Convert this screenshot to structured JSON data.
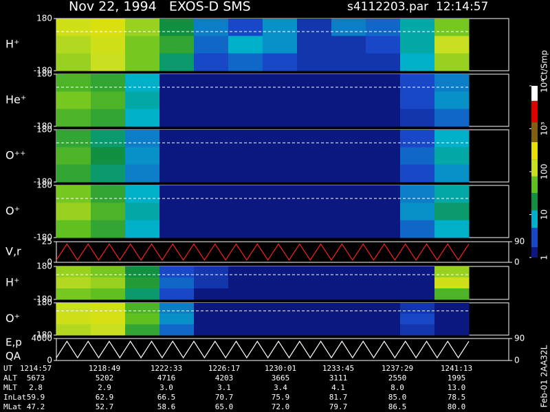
{
  "title": "Nov 22, 1994   EXOS-D SMS",
  "file": "s4112203.par  12:14:57",
  "chart_data": [
    {
      "type": "heatmap",
      "label": "H⁺",
      "ylim": [
        -180,
        180
      ],
      "yticks": [
        180,
        -180
      ],
      "ref_line": 90,
      "z": [
        [
          150,
          200,
          80,
          20,
          5,
          3,
          6,
          2,
          5,
          4,
          10,
          60
        ],
        [
          100,
          150,
          60,
          30,
          4,
          8,
          6,
          2,
          2,
          3,
          10,
          120
        ],
        [
          80,
          120,
          60,
          15,
          3,
          4,
          3,
          2,
          2,
          2,
          8,
          80
        ]
      ]
    },
    {
      "type": "heatmap",
      "label": "He⁺",
      "ylim": [
        -180,
        180
      ],
      "yticks": [
        180,
        -180
      ],
      "ref_line": 90,
      "z": [
        [
          40,
          30,
          8,
          1,
          1,
          1,
          1,
          1,
          1,
          1,
          3,
          5
        ],
        [
          60,
          40,
          10,
          1,
          1,
          1,
          1,
          1,
          1,
          1,
          3,
          6
        ],
        [
          40,
          30,
          8,
          1,
          1,
          1,
          1,
          1,
          1,
          1,
          2,
          4
        ]
      ]
    },
    {
      "type": "heatmap",
      "label": "O⁺⁺",
      "ylim": [
        -180,
        180
      ],
      "yticks": [
        180,
        -180
      ],
      "ref_line": 90,
      "z": [
        [
          30,
          15,
          5,
          1,
          1,
          1,
          1,
          1,
          1,
          1,
          3,
          8
        ],
        [
          40,
          20,
          6,
          1,
          1,
          1,
          1,
          1,
          1,
          1,
          4,
          10
        ],
        [
          30,
          15,
          5,
          1,
          1,
          1,
          1,
          1,
          1,
          1,
          3,
          6
        ]
      ]
    },
    {
      "type": "heatmap",
      "label": "O⁺",
      "ylim": [
        -180,
        180
      ],
      "yticks": [
        180,
        -180
      ],
      "ref_line": 90,
      "z": [
        [
          60,
          30,
          8,
          1,
          1,
          1,
          1,
          1,
          1,
          1,
          5,
          10
        ],
        [
          80,
          40,
          10,
          1,
          1,
          1,
          1,
          1,
          1,
          1,
          6,
          15
        ],
        [
          50,
          30,
          8,
          1,
          1,
          1,
          1,
          1,
          1,
          1,
          4,
          8
        ]
      ]
    },
    {
      "type": "line",
      "label": "V,r",
      "ylim": [
        0,
        25
      ],
      "yticks": [
        25,
        0
      ],
      "y2lim": [
        0,
        90
      ],
      "y2ticks": [
        90,
        0
      ],
      "series": [
        {
          "color": "#ff2020",
          "axis": "y2",
          "values": [
            10,
            80,
            10,
            80,
            10,
            80,
            10,
            80,
            10,
            80,
            10,
            80,
            10,
            80,
            10,
            80,
            10,
            80,
            10,
            80,
            10,
            80,
            10,
            80,
            10,
            80,
            10,
            80,
            10,
            80,
            10,
            80,
            10,
            80,
            10,
            80,
            10,
            80,
            10,
            80
          ]
        }
      ]
    },
    {
      "type": "heatmap",
      "label": "H⁺",
      "ylim": [
        -180,
        180
      ],
      "yticks": [
        180,
        -180
      ],
      "ref_line": 90,
      "z": [
        [
          80,
          60,
          20,
          3,
          2,
          1,
          1,
          1,
          1,
          1,
          1,
          80
        ],
        [
          100,
          80,
          25,
          4,
          2,
          1,
          1,
          1,
          1,
          1,
          1,
          150
        ],
        [
          60,
          50,
          15,
          3,
          1,
          1,
          1,
          1,
          1,
          1,
          1,
          40
        ]
      ]
    },
    {
      "type": "heatmap",
      "label": "O⁺",
      "ylim": [
        -180,
        180
      ],
      "yticks": [
        180,
        -180
      ],
      "ref_line": 90,
      "z": [
        [
          120,
          150,
          40,
          5,
          1,
          1,
          1,
          1,
          1,
          1,
          2,
          1
        ],
        [
          150,
          180,
          50,
          6,
          1,
          1,
          1,
          1,
          1,
          1,
          3,
          1
        ],
        [
          100,
          120,
          30,
          4,
          1,
          1,
          1,
          1,
          1,
          1,
          2,
          1
        ]
      ]
    },
    {
      "type": "line",
      "label": "E,p",
      "label2": "QA",
      "ylim": [
        0,
        4000
      ],
      "yticks": [
        4000,
        0
      ],
      "y2lim": [
        0,
        90
      ],
      "y2ticks": [
        90,
        0
      ],
      "series": [
        {
          "color": "#ffffff",
          "values": [
            500,
            3500,
            500,
            3500,
            500,
            3500,
            500,
            3500,
            500,
            3500,
            500,
            3500,
            500,
            3500,
            500,
            3500,
            500,
            3500,
            500,
            3500,
            500,
            3500,
            500,
            3500,
            500,
            3500,
            500,
            3500,
            500,
            3500,
            500,
            3500,
            500,
            3500,
            500,
            3500,
            500,
            3500,
            500,
            3500
          ]
        }
      ]
    }
  ],
  "colorbar": {
    "label": "Ct/Smp",
    "lim": [
      1,
      10000
    ],
    "ticks": [
      1,
      10,
      100,
      {
        "value": 1000,
        "label": "10³"
      },
      {
        "value": 10000,
        "label": "10⁴"
      }
    ],
    "colorscale": [
      {
        "value": 1,
        "color": "#0a1880"
      },
      {
        "value": 3,
        "color": "#1848c8"
      },
      {
        "value": 8,
        "color": "#00b0c8"
      },
      {
        "value": 20,
        "color": "#109040"
      },
      {
        "value": 50,
        "color": "#60c020"
      },
      {
        "value": 120,
        "color": "#c8e020"
      },
      {
        "value": 300,
        "color": "#e8e000"
      },
      {
        "value": 800,
        "color": "#806010"
      },
      {
        "value": 2500,
        "color": "#e00000"
      },
      {
        "value": 8000,
        "color": "#ffffff"
      }
    ]
  },
  "table": {
    "rows": [
      [
        "UT",
        "1214:57",
        "1218:49",
        "1222:33",
        "1226:17",
        "1230:01",
        "1233:45",
        "1237:29",
        "1241:13"
      ],
      [
        "ALT",
        "5673",
        "5202",
        "4716",
        "4203",
        "3665",
        "3111",
        "2550",
        "1995"
      ],
      [
        "MLT",
        "2.8",
        "2.9",
        "3.0",
        "3.1",
        "3.4",
        "4.1",
        "8.0",
        "13.0"
      ],
      [
        "InLat",
        "59.9",
        "62.9",
        "66.5",
        "70.7",
        "75.9",
        "81.7",
        "85.0",
        "78.5"
      ],
      [
        "MLat",
        "47.2",
        "52.7",
        "58.6",
        "65.0",
        "72.0",
        "79.7",
        "86.5",
        "80.0"
      ]
    ]
  },
  "footer": "Feb-01 2AA32L"
}
